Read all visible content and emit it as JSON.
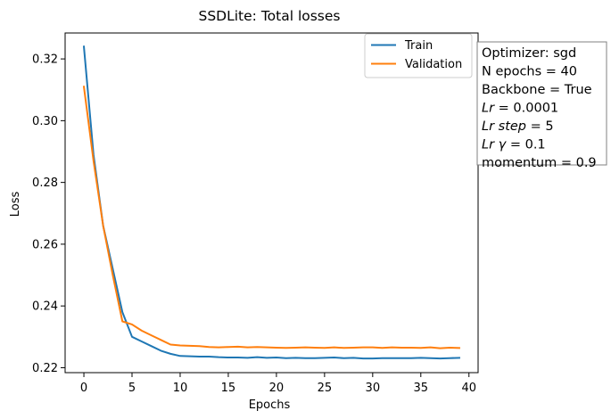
{
  "chart_data": {
    "type": "line",
    "title": "SSDLite: Total losses",
    "xlabel": "Epochs",
    "ylabel": "Loss",
    "xlim": [
      -1.95,
      40.95
    ],
    "ylim": [
      0.2184,
      0.3284
    ],
    "xticks": [
      0,
      5,
      10,
      15,
      20,
      25,
      30,
      35,
      40
    ],
    "yticks": [
      0.22,
      0.24,
      0.26,
      0.28,
      0.3,
      0.32
    ],
    "ytick_labels": [
      "0.22",
      "0.24",
      "0.26",
      "0.28",
      "0.30",
      "0.32"
    ],
    "grid": false,
    "legend_position": "top-right",
    "x": [
      0,
      1,
      2,
      3,
      4,
      5,
      6,
      7,
      8,
      9,
      10,
      11,
      12,
      13,
      14,
      15,
      16,
      17,
      18,
      19,
      20,
      21,
      22,
      23,
      24,
      25,
      26,
      27,
      28,
      29,
      30,
      31,
      32,
      33,
      34,
      35,
      36,
      37,
      38,
      39
    ],
    "series": [
      {
        "name": "Train",
        "color": "#1f77b4",
        "values": [
          0.324,
          0.289,
          0.266,
          0.252,
          0.238,
          0.23,
          0.2285,
          0.227,
          0.2255,
          0.2245,
          0.2238,
          0.2237,
          0.2236,
          0.2236,
          0.2234,
          0.2233,
          0.2233,
          0.2232,
          0.2234,
          0.2232,
          0.2233,
          0.2231,
          0.2232,
          0.2231,
          0.2231,
          0.2232,
          0.2233,
          0.2231,
          0.2232,
          0.223,
          0.223,
          0.2231,
          0.2231,
          0.2231,
          0.2231,
          0.2232,
          0.2231,
          0.223,
          0.2231,
          0.2232
        ]
      },
      {
        "name": "Validation",
        "color": "#ff7f0e",
        "values": [
          0.311,
          0.287,
          0.266,
          0.25,
          0.235,
          0.234,
          0.232,
          0.2305,
          0.229,
          0.2275,
          0.2272,
          0.2271,
          0.227,
          0.2267,
          0.2266,
          0.2267,
          0.2268,
          0.2266,
          0.2267,
          0.2266,
          0.2265,
          0.2264,
          0.2265,
          0.2266,
          0.2265,
          0.2264,
          0.2266,
          0.2264,
          0.2265,
          0.2266,
          0.2266,
          0.2264,
          0.2266,
          0.2265,
          0.2265,
          0.2264,
          0.2266,
          0.2263,
          0.2265,
          0.2264
        ]
      }
    ]
  },
  "annotation": {
    "lines": [
      {
        "prefix": "Optimizer: sgd"
      },
      {
        "prefix": "N epochs = 40"
      },
      {
        "prefix": "Backbone = True"
      },
      {
        "italic": "Lr",
        "suffix": " = 0.0001"
      },
      {
        "italic": "Lr step",
        "suffix": " = 5"
      },
      {
        "italic": "Lr γ",
        "suffix": " = 0.1"
      },
      {
        "prefix": "momentum = 0.9"
      }
    ]
  },
  "colors": {
    "train": "#1f77b4",
    "validation": "#ff7f0e",
    "note_border": "#808080"
  }
}
